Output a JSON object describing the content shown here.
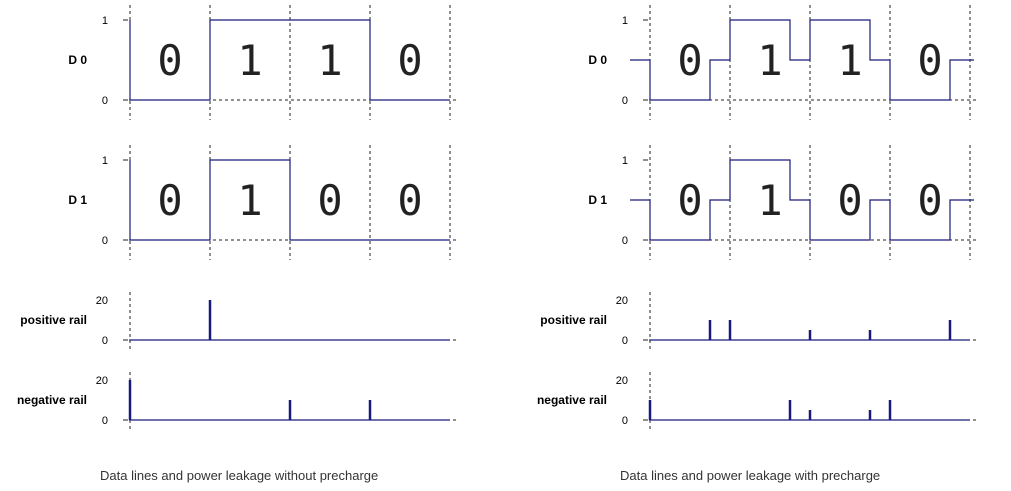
{
  "panels": [
    {
      "id": "no-precharge",
      "caption": "Data lines and power leakage without precharge",
      "precharge": false,
      "rows": [
        {
          "label": "D 0",
          "kind": "data",
          "y_ticks": [
            "1",
            "0"
          ],
          "bits": [
            "0",
            "1",
            "1",
            "0"
          ]
        },
        {
          "label": "D 1",
          "kind": "data",
          "y_ticks": [
            "1",
            "0"
          ],
          "bits": [
            "0",
            "1",
            "0",
            "0"
          ]
        },
        {
          "label": "positive rail",
          "kind": "rail",
          "y_ticks": [
            "20",
            "0"
          ],
          "spikes": [
            {
              "t": 1,
              "value": 20
            }
          ]
        },
        {
          "label": "negative rail",
          "kind": "rail",
          "y_ticks": [
            "20",
            "0"
          ],
          "spikes": [
            {
              "t": 0,
              "value": 20
            },
            {
              "t": 2,
              "value": 10
            },
            {
              "t": 3,
              "value": 10
            }
          ]
        }
      ]
    },
    {
      "id": "with-precharge",
      "caption": "Data lines and power leakage with precharge",
      "precharge": true,
      "rows": [
        {
          "label": "D 0",
          "kind": "data",
          "y_ticks": [
            "1",
            "0"
          ],
          "bits": [
            "0",
            "1",
            "1",
            "0"
          ]
        },
        {
          "label": "D 1",
          "kind": "data",
          "y_ticks": [
            "1",
            "0"
          ],
          "bits": [
            "0",
            "1",
            "0",
            "0"
          ]
        },
        {
          "label": "positive rail",
          "kind": "rail",
          "y_ticks": [
            "20",
            "0"
          ],
          "spikes": [
            {
              "t": 0.75,
              "value": 10
            },
            {
              "t": 1,
              "value": 10
            },
            {
              "t": 2,
              "value": 5
            },
            {
              "t": 2.75,
              "value": 5
            },
            {
              "t": 3.75,
              "value": 10
            }
          ]
        },
        {
          "label": "negative rail",
          "kind": "rail",
          "y_ticks": [
            "20",
            "0"
          ],
          "spikes": [
            {
              "t": 0,
              "value": 10
            },
            {
              "t": 1.75,
              "value": 10
            },
            {
              "t": 2,
              "value": 5
            },
            {
              "t": 2.75,
              "value": 5
            },
            {
              "t": 3,
              "value": 10
            }
          ]
        }
      ]
    }
  ]
}
